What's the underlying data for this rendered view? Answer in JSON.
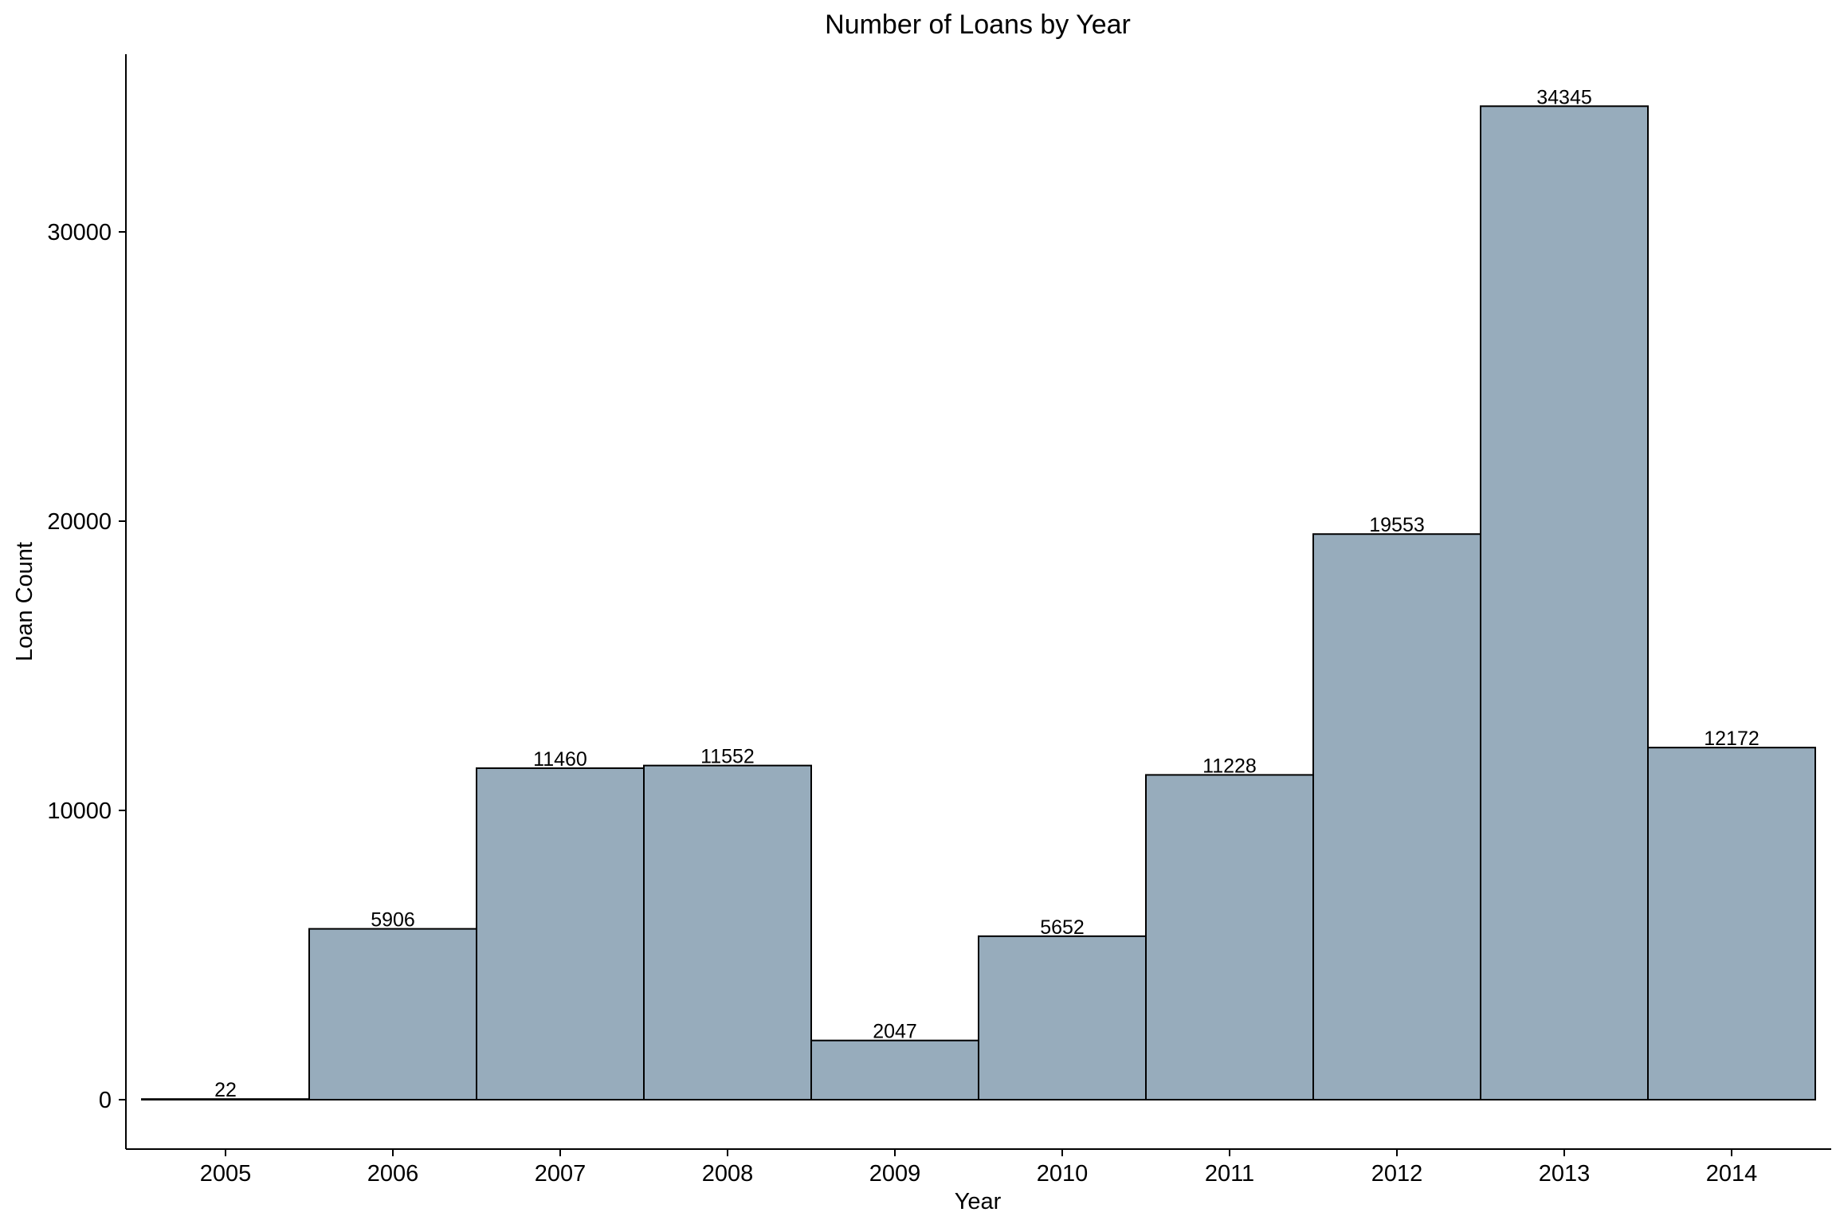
{
  "chart_data": {
    "type": "bar",
    "title": "Number of Loans by Year",
    "xlabel": "Year",
    "ylabel": "Loan Count",
    "categories": [
      "2005",
      "2006",
      "2007",
      "2008",
      "2009",
      "2010",
      "2011",
      "2012",
      "2013",
      "2014"
    ],
    "values": [
      22,
      5906,
      11460,
      11552,
      2047,
      5652,
      11228,
      19553,
      34345,
      12172
    ],
    "data_labels": [
      "22",
      "5906",
      "11460",
      "11552",
      "2047",
      "5652",
      "11228",
      "19553",
      "34345",
      "12172"
    ],
    "yticks": [
      0,
      10000,
      20000,
      30000
    ],
    "ylim": [
      0,
      36100
    ],
    "grid": false,
    "bar_color": "#97acbc",
    "bar_edge_color": "#000000"
  }
}
